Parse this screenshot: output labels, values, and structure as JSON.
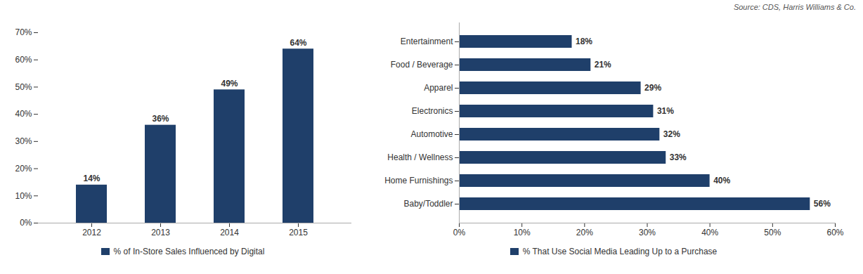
{
  "chart_data": [
    {
      "type": "bar",
      "categories": [
        "2012",
        "2013",
        "2014",
        "2015"
      ],
      "series": [
        {
          "name": "% of In-Store Sales Influenced by Digital",
          "color": "#1F3F6A",
          "values": [
            0.14,
            0.36,
            0.49,
            0.64
          ],
          "value_labels": [
            "14%",
            "36%",
            "49%",
            "64%"
          ]
        }
      ],
      "ylim": [
        0,
        0.7
      ],
      "yticks": [
        {
          "value": 0.0,
          "label": "0%"
        },
        {
          "value": 0.1,
          "label": "10%"
        },
        {
          "value": 0.2,
          "label": "20%"
        },
        {
          "value": 0.3,
          "label": "30%"
        },
        {
          "value": 0.4,
          "label": "40%"
        },
        {
          "value": 0.5,
          "label": "50%"
        },
        {
          "value": 0.6,
          "label": "60%"
        },
        {
          "value": 0.7,
          "label": "70%"
        }
      ],
      "grid": false,
      "legend": "bottom",
      "data_labels": true
    },
    {
      "type": "bar",
      "orientation": "horizontal",
      "categories": [
        "Entertainment",
        "Food / Beverage",
        "Apparel",
        "Electronics",
        "Automotive",
        "Health / Wellness",
        "Home Furnishings",
        "Baby/Toddler"
      ],
      "series": [
        {
          "name": "% That Use Social Media Leading Up to a Purchase",
          "color": "#1F3F6A",
          "values": [
            0.18,
            0.21,
            0.29,
            0.31,
            0.32,
            0.33,
            0.4,
            0.56
          ],
          "value_labels": [
            "18%",
            "21%",
            "29%",
            "31%",
            "32%",
            "33%",
            "40%",
            "56%"
          ]
        }
      ],
      "xlim": [
        0,
        0.6
      ],
      "xticks": [
        {
          "value": 0.0,
          "label": "0%"
        },
        {
          "value": 0.1,
          "label": "10%"
        },
        {
          "value": 0.2,
          "label": "20%"
        },
        {
          "value": 0.3,
          "label": "30%"
        },
        {
          "value": 0.4,
          "label": "40%"
        },
        {
          "value": 0.5,
          "label": "50%"
        },
        {
          "value": 0.6,
          "label": "60%"
        }
      ],
      "grid": false,
      "legend": "bottom",
      "data_labels": true,
      "annotations": [
        "Source: CDS, Harris Williams & Co."
      ]
    }
  ]
}
